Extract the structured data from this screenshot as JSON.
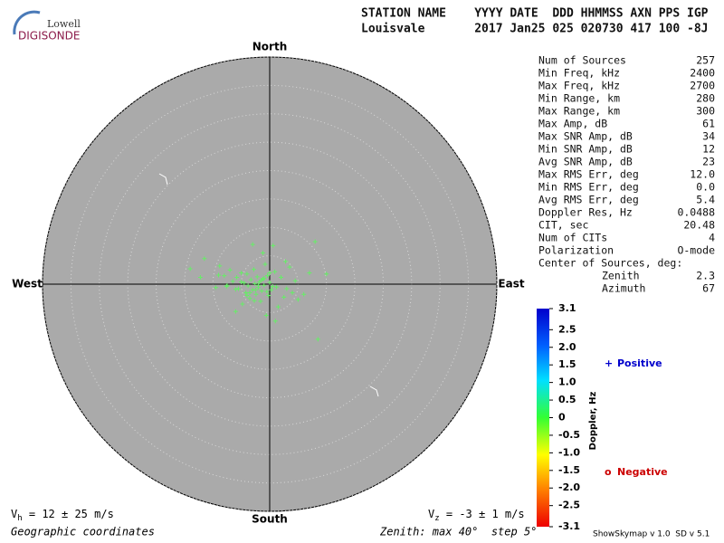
{
  "logo": {
    "top": "Lowell",
    "bottom": "DIGISONDE"
  },
  "header": {
    "line1": "STATION NAME    YYYY DATE  DDD HHMMSS AXN PPS IGP",
    "line2": "Louisvale       2017 Jan25 025 020730 417 100 -8J"
  },
  "stats": {
    "rows": [
      [
        "Num of Sources",
        "257"
      ],
      [
        "Min Freq, kHz",
        "2400"
      ],
      [
        "Max Freq, kHz",
        "2700"
      ],
      [
        "Min Range, km",
        "280"
      ],
      [
        "Max Range, km",
        "300"
      ],
      [
        "Max Amp, dB",
        "61"
      ],
      [
        "Max SNR Amp, dB",
        "34"
      ],
      [
        "Min SNR Amp, dB",
        "12"
      ],
      [
        "Avg SNR Amp, dB",
        "23"
      ],
      [
        "Max RMS Err, deg",
        "12.0"
      ],
      [
        "Min RMS Err, deg",
        "0.0"
      ],
      [
        "Avg RMS Err, deg",
        "5.4"
      ],
      [
        "Doppler Res, Hz",
        "0.0488"
      ],
      [
        "CIT, sec",
        "20.48"
      ],
      [
        "Num of CITs",
        "4"
      ],
      [
        "Polarization",
        "O-mode"
      ]
    ],
    "center_title": "Center of Sources, deg:",
    "center_rows": [
      [
        "Zenith",
        "2.3"
      ],
      [
        "Azimuth",
        "67"
      ]
    ]
  },
  "chart_data": {
    "type": "scatter",
    "directions": {
      "north": "North",
      "south": "South",
      "west": "West",
      "east": "East"
    },
    "xlim": [
      -40,
      40
    ],
    "ylim": [
      -40,
      40
    ],
    "rticks": [
      5,
      10,
      15,
      20,
      25,
      30,
      35,
      40
    ],
    "color": "#66ee66",
    "x": [
      -14,
      -12.2,
      -11.5,
      -9.5,
      -8.8,
      -8,
      -7.6,
      -7,
      -6.5,
      -6,
      -5.8,
      -5.5,
      -5,
      -4.8,
      -4.5,
      -4.2,
      -4,
      -3.8,
      -3.5,
      -3.3,
      -3,
      -2.8,
      -2.6,
      -2.4,
      -2.2,
      -2,
      -1.8,
      -1.6,
      -1.4,
      -1.2,
      -1,
      -0.8,
      -0.6,
      -0.4,
      -0.2,
      0,
      0.3,
      0.6,
      0.9,
      1.2,
      1.5,
      2,
      2.5,
      3,
      3.5,
      4,
      4.5,
      5,
      6,
      7,
      8.5,
      10,
      -3,
      -2.5,
      -1.5,
      -0.5,
      0.5,
      -4,
      -6,
      -5,
      -2,
      -1,
      0,
      1,
      -3.5,
      -7.5,
      -9,
      -1.2,
      -2.7,
      2.8,
      8
    ],
    "y": [
      2.7,
      1.2,
      4.5,
      -0.6,
      3.2,
      1.5,
      -0.4,
      2.5,
      0.5,
      -4.8,
      1.2,
      -0.8,
      2,
      -3.5,
      0.2,
      -1.5,
      1.8,
      -0.3,
      -2.5,
      0.8,
      -1,
      2.6,
      0.1,
      -1.8,
      1.3,
      -0.6,
      0.4,
      -3,
      -1.2,
      0.9,
      -0.2,
      3.5,
      -5.5,
      1.5,
      -2,
      0.3,
      -1,
      6.8,
      2.2,
      -0.5,
      -4,
      1.2,
      -2.3,
      -0.8,
      3,
      -1.5,
      0.6,
      -2.7,
      -1.8,
      2,
      -9.7,
      1.8,
      7,
      -1,
      0.7,
      -1.3,
      -0.4,
      -2,
      -0.9,
      0.4,
      -0.2,
      1,
      2,
      -6.5,
      -1.5,
      -0.2,
      1.6,
      5.5,
      -2.9,
      4,
      7.5
    ],
    "colorbar": {
      "label": "Doppler, Hz",
      "lim": [
        -3.1,
        3.1
      ],
      "ticks": [
        3.1,
        2.5,
        {
          "value": 2,
          "label": "2.0"
        },
        1.5,
        {
          "value": 1,
          "label": "1.0"
        },
        0.5,
        0,
        -0.5,
        {
          "value": -1,
          "label": "-1.0"
        },
        -1.5,
        {
          "value": -2,
          "label": "-2.0"
        },
        -2.5,
        -3.1
      ]
    },
    "legend": [
      {
        "symbol": "+",
        "label": "Positive",
        "color": "#0000cc"
      },
      {
        "symbol": "o",
        "label": "Negative",
        "color": "#cc0000"
      }
    ]
  },
  "footer": {
    "vh": {
      "symbol": "V",
      "sub": "h",
      "text": " = 12 ± 25 m/s"
    },
    "vz": {
      "symbol": "V",
      "sub": "z",
      "text": " = -3 ± 1 m/s"
    },
    "coords": "Geographic coordinates",
    "zenith": "Zenith: max 40°  step 5°",
    "version": "ShowSkymap v 1.0  SD v 5.1"
  }
}
